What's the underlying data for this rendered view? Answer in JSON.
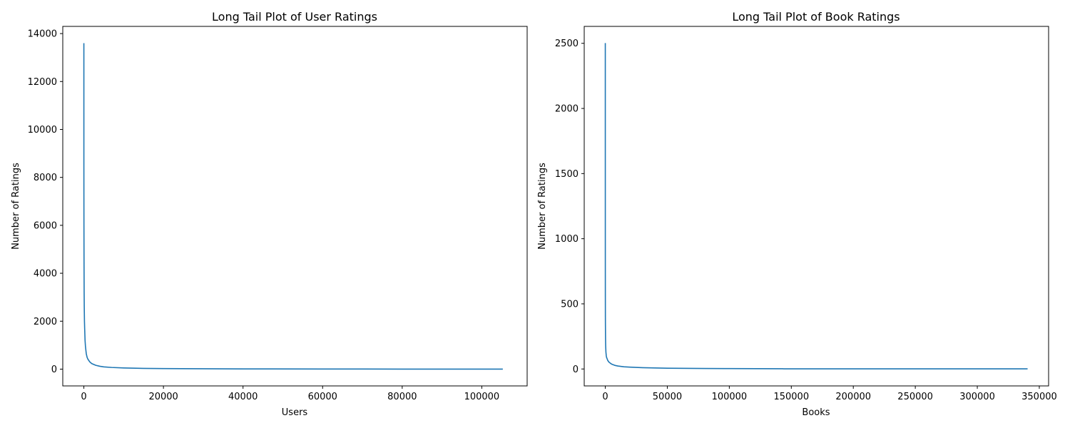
{
  "chart_data": [
    {
      "type": "line",
      "title": "Long Tail Plot of User Ratings",
      "xlabel": "Users",
      "ylabel": "Number of Ratings",
      "xlim": [
        -5300,
        111400
      ],
      "ylim": [
        -700,
        14300
      ],
      "xticks": [
        0,
        20000,
        40000,
        60000,
        80000,
        100000
      ],
      "yticks": [
        0,
        2000,
        4000,
        6000,
        8000,
        10000,
        12000,
        14000
      ],
      "grid": false,
      "series": [
        {
          "color": "#1f77b4",
          "x": [
            0,
            5,
            10,
            20,
            40,
            70,
            100,
            150,
            200,
            300,
            400,
            600,
            800,
            1000,
            1500,
            2000,
            3000,
            4000,
            5000,
            7000,
            10000,
            15000,
            20000,
            30000,
            40000,
            60000,
            80000,
            105283
          ],
          "y": [
            13602,
            8500,
            7300,
            6000,
            4500,
            3200,
            2600,
            2000,
            1700,
            1200,
            950,
            650,
            500,
            420,
            300,
            230,
            160,
            120,
            95,
            70,
            50,
            32,
            24,
            15,
            10,
            5,
            2,
            1
          ]
        }
      ]
    },
    {
      "type": "line",
      "title": "Long Tail Plot of Book Ratings",
      "xlabel": "Books",
      "ylabel": "Number of Ratings",
      "xlim": [
        -17000,
        357500
      ],
      "ylim": [
        -130,
        2630
      ],
      "xticks": [
        0,
        50000,
        100000,
        150000,
        200000,
        250000,
        300000,
        350000
      ],
      "yticks": [
        0,
        500,
        1000,
        1500,
        2000,
        2500
      ],
      "grid": false,
      "series": [
        {
          "color": "#1f77b4",
          "x": [
            0,
            2,
            5,
            10,
            20,
            40,
            70,
            100,
            150,
            200,
            300,
            500,
            800,
            1000,
            2000,
            3000,
            5000,
            8000,
            10000,
            15000,
            20000,
            30000,
            40000,
            50000,
            60000,
            80000,
            100000,
            143000,
            144000,
            200000,
            250000,
            300000,
            340556
          ],
          "y": [
            2502,
            1800,
            1400,
            1000,
            750,
            550,
            400,
            340,
            280,
            230,
            180,
            130,
            100,
            90,
            65,
            52,
            38,
            27,
            23,
            17,
            14,
            10,
            8,
            6,
            5,
            4,
            3,
            2,
            1,
            1,
            1,
            1,
            1
          ]
        }
      ]
    }
  ]
}
